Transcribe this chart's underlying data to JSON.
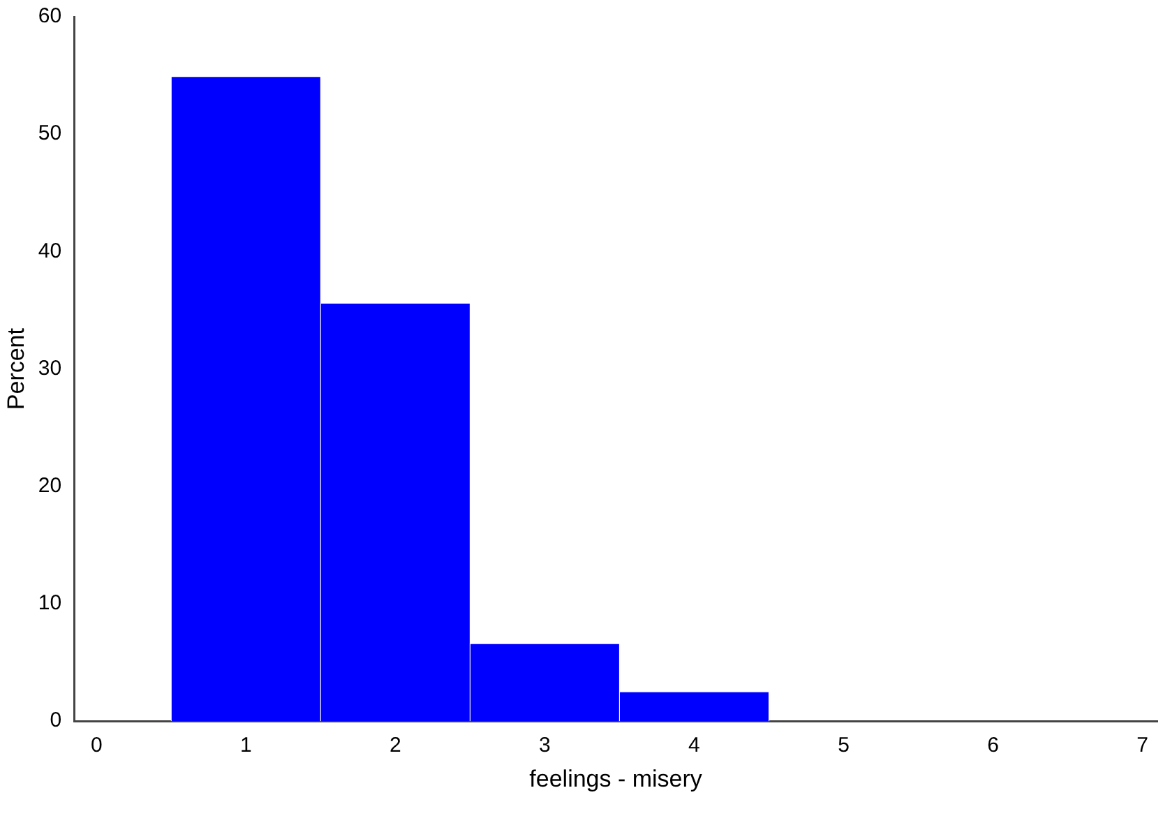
{
  "chart_data": {
    "type": "histogram",
    "xlabel": "feelings - misery",
    "ylabel": "Percent",
    "bins": [
      0.5,
      1.5,
      2.5,
      3.5,
      4.5
    ],
    "values": [
      54.9,
      35.6,
      6.6,
      2.5
    ],
    "color": "#0000ff",
    "xlim": [
      -0.15,
      7.1
    ],
    "xticks": [
      0,
      1,
      2,
      3,
      4,
      5,
      6,
      7
    ],
    "ylim": [
      0,
      60
    ],
    "yticks": [
      0,
      10,
      20,
      30,
      40,
      50,
      60
    ],
    "grid": false,
    "legend": false
  }
}
